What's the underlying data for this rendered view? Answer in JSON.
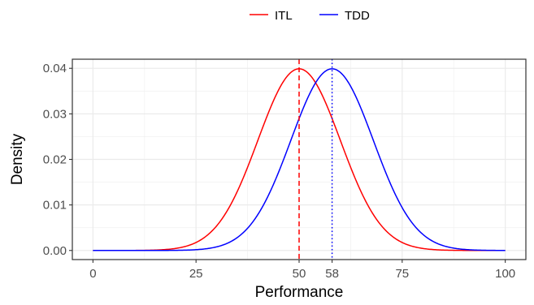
{
  "chart_data": {
    "type": "line",
    "title": "",
    "xlabel": "Performance",
    "ylabel": "Density",
    "xlim": [
      0,
      100
    ],
    "ylim": [
      0,
      0.04
    ],
    "x_ticks": [
      0,
      25,
      50,
      58,
      75,
      100
    ],
    "x_tick_labels": [
      "0",
      "25",
      "50",
      "58",
      "75",
      "100"
    ],
    "y_ticks": [
      0,
      0.01,
      0.02,
      0.03,
      0.04
    ],
    "y_tick_labels": [
      "0.00",
      "0.01",
      "0.02",
      "0.03",
      "0.04"
    ],
    "grid": true,
    "legend_position": "top",
    "series": [
      {
        "name": "ITL",
        "color": "#ff0000",
        "distribution": "normal",
        "mean": 50,
        "sd": 10,
        "reference_line": {
          "x": 50,
          "style": "dashed"
        }
      },
      {
        "name": "TDD",
        "color": "#0000ff",
        "distribution": "normal",
        "mean": 58,
        "sd": 10,
        "reference_line": {
          "x": 58,
          "style": "dotted"
        }
      }
    ]
  }
}
